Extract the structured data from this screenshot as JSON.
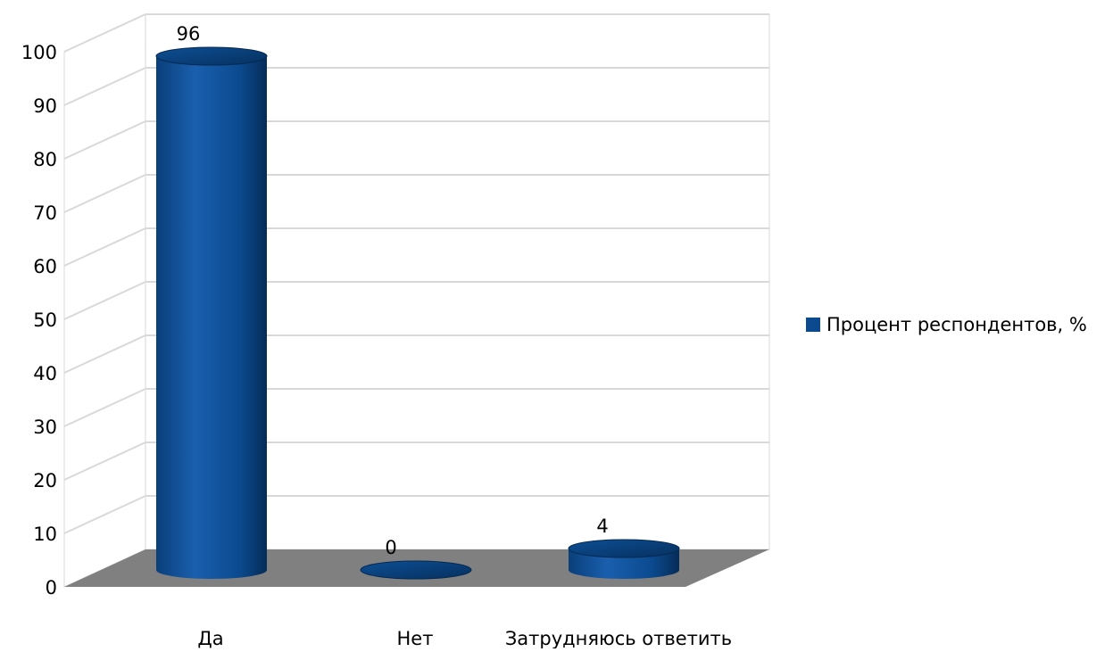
{
  "chart_data": {
    "type": "bar",
    "style": "3d-cylinder",
    "categories": [
      "Да",
      "Нет",
      "Затрудняюсь ответить"
    ],
    "series": [
      {
        "name": "Процент респондентов, %",
        "values": [
          96,
          0,
          4
        ],
        "color": "#0b4a8f"
      }
    ],
    "data_labels": [
      "96",
      "0",
      "4"
    ],
    "y_ticks": [
      "0",
      "10",
      "20",
      "30",
      "40",
      "50",
      "60",
      "70",
      "80",
      "90",
      "100"
    ],
    "ylim": [
      0,
      100
    ],
    "grid": true,
    "legend_position": "right",
    "floor_color": "#808080",
    "title": "",
    "xlabel": "",
    "ylabel": ""
  }
}
